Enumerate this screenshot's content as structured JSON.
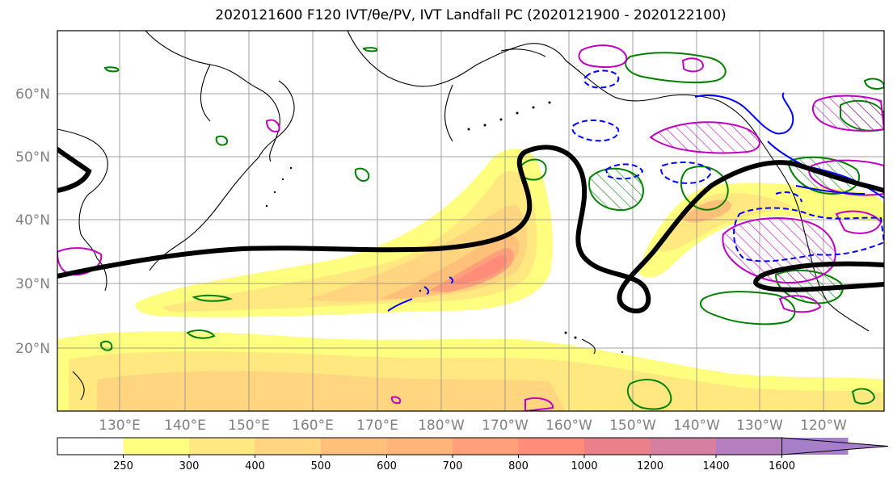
{
  "title": "2020121600 F120 IVT/θe/PV, IVT Landfall PC (2020121900 - 2020122100)",
  "map": {
    "lat_labels": [
      "60°N",
      "50°N",
      "40°N",
      "30°N",
      "20°N"
    ],
    "lon_labels": [
      "130°E",
      "140°E",
      "150°E",
      "160°E",
      "170°E",
      "180°W",
      "170°W",
      "160°W",
      "150°W",
      "140°W",
      "130°W",
      "120°W"
    ],
    "grid": true,
    "frame_color": "#000000"
  },
  "colorbar": {
    "ticks": [
      "250",
      "300",
      "400",
      "500",
      "600",
      "700",
      "800",
      "1000",
      "1200",
      "1400",
      "1600"
    ],
    "colors": [
      "#ffffff",
      "#ffff7f",
      "#ffe880",
      "#ffd580",
      "#ffc07a",
      "#ffb47a",
      "#ffa07a",
      "#ff8c78",
      "#eb7f8a",
      "#d67fa0",
      "#b57fbf",
      "#a67fc8"
    ],
    "extend": "max"
  },
  "contours": {
    "theta_e_color": "#000000",
    "pv_positive_color": "#008000",
    "pv_negative_color": "#0000ff",
    "magenta_color": "#c000c0"
  }
}
